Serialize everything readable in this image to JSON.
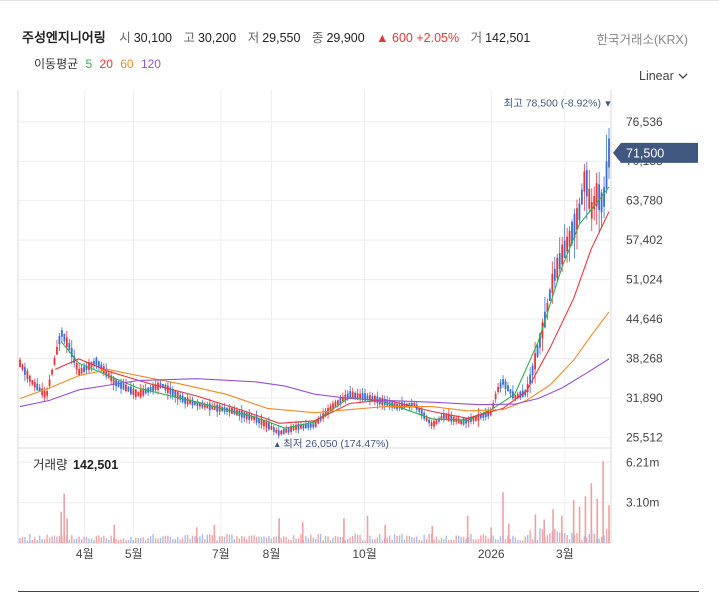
{
  "header": {
    "name": "주성엔지니어링",
    "open_label": "시",
    "open": "30,100",
    "high_label": "고",
    "high": "30,200",
    "low_label": "저",
    "low": "29,550",
    "close_label": "종",
    "close": "29,900",
    "change_arrow": "▲",
    "change": "600",
    "change_pct": "+2.05%",
    "volume_label": "거",
    "volume": "142,501",
    "exchange": "한국거래소(KRX)"
  },
  "ma_legend": {
    "label": "이동평균",
    "periods": [
      {
        "label": "5",
        "color": "#2db04b"
      },
      {
        "label": "20",
        "color": "#e8353a"
      },
      {
        "label": "60",
        "color": "#f08a24"
      },
      {
        "label": "120",
        "color": "#9b4fd6"
      }
    ]
  },
  "scale_select": {
    "value": "Linear",
    "icon": "chevron-down-icon"
  },
  "colors": {
    "up": "#e8353a",
    "down": "#3b6fd4",
    "price_tag": "#40587f",
    "grid": "#eeeeee"
  },
  "chart_data": {
    "type": "candlestick",
    "price_axis": {
      "ticks": [
        25512,
        31890,
        38268,
        44646,
        51024,
        57402,
        63780,
        70158,
        76536
      ],
      "tick_labels": [
        "25,512",
        "31,890",
        "38,268",
        "44,646",
        "51,024",
        "57,402",
        "63,780",
        "70,158",
        "76,536"
      ],
      "range": [
        23800,
        80700
      ]
    },
    "current_price": {
      "value": 71500,
      "label": "71,500"
    },
    "high_annotation": {
      "value": 78500,
      "text": "최고 78,500 (-8.92%)",
      "marker": "▼"
    },
    "low_annotation": {
      "value": 26050,
      "text": "최저 26,050 (174.47%)",
      "marker": "▲"
    },
    "x_labels": [
      "4월",
      "5월",
      "7월",
      "8월",
      "10월",
      "2026",
      "3월"
    ],
    "x_label_positions": [
      0.11,
      0.193,
      0.341,
      0.427,
      0.585,
      0.8,
      0.925
    ],
    "price_path": [
      [
        0,
        37500
      ],
      [
        0.02,
        34500
      ],
      [
        0.045,
        32200
      ],
      [
        0.07,
        42500
      ],
      [
        0.085,
        40000
      ],
      [
        0.1,
        36000
      ],
      [
        0.13,
        37800
      ],
      [
        0.16,
        34500
      ],
      [
        0.2,
        32500
      ],
      [
        0.24,
        34000
      ],
      [
        0.28,
        31500
      ],
      [
        0.32,
        30500
      ],
      [
        0.36,
        29800
      ],
      [
        0.4,
        28500
      ],
      [
        0.42,
        27500
      ],
      [
        0.44,
        26200
      ],
      [
        0.47,
        27200
      ],
      [
        0.5,
        27500
      ],
      [
        0.53,
        30500
      ],
      [
        0.56,
        32500
      ],
      [
        0.6,
        31800
      ],
      [
        0.64,
        30500
      ],
      [
        0.67,
        30800
      ],
      [
        0.7,
        27500
      ],
      [
        0.72,
        29000
      ],
      [
        0.75,
        28000
      ],
      [
        0.78,
        28800
      ],
      [
        0.8,
        29500
      ],
      [
        0.81,
        33000
      ],
      [
        0.82,
        34500
      ],
      [
        0.84,
        32000
      ],
      [
        0.86,
        32800
      ],
      [
        0.875,
        38000
      ],
      [
        0.89,
        44000
      ],
      [
        0.905,
        51000
      ],
      [
        0.92,
        55000
      ],
      [
        0.935,
        58000
      ],
      [
        0.95,
        62000
      ],
      [
        0.96,
        68000
      ],
      [
        0.97,
        62000
      ],
      [
        0.98,
        65000
      ],
      [
        0.99,
        63000
      ],
      [
        1.0,
        71500
      ]
    ],
    "moving_averages": [
      {
        "period": 5,
        "color": "#2db04b",
        "path": [
          [
            0.07,
            41000
          ],
          [
            0.1,
            37500
          ],
          [
            0.2,
            33500
          ],
          [
            0.3,
            31200
          ],
          [
            0.4,
            28800
          ],
          [
            0.45,
            27000
          ],
          [
            0.5,
            28000
          ],
          [
            0.56,
            32000
          ],
          [
            0.62,
            31200
          ],
          [
            0.7,
            28500
          ],
          [
            0.76,
            28300
          ],
          [
            0.8,
            30000
          ],
          [
            0.84,
            32500
          ],
          [
            0.88,
            41000
          ],
          [
            0.92,
            53000
          ],
          [
            0.95,
            60000
          ],
          [
            0.98,
            63500
          ],
          [
            1.0,
            66000
          ]
        ]
      },
      {
        "period": 20,
        "color": "#e8353a",
        "path": [
          [
            0.06,
            36500
          ],
          [
            0.1,
            38200
          ],
          [
            0.15,
            36200
          ],
          [
            0.22,
            34200
          ],
          [
            0.3,
            32200
          ],
          [
            0.38,
            29800
          ],
          [
            0.44,
            27800
          ],
          [
            0.5,
            28200
          ],
          [
            0.56,
            31000
          ],
          [
            0.62,
            31600
          ],
          [
            0.7,
            29700
          ],
          [
            0.76,
            28600
          ],
          [
            0.82,
            30200
          ],
          [
            0.86,
            33000
          ],
          [
            0.9,
            40000
          ],
          [
            0.94,
            48000
          ],
          [
            0.97,
            56000
          ],
          [
            1.0,
            62000
          ]
        ]
      },
      {
        "period": 60,
        "color": "#f08a24",
        "path": [
          [
            0.0,
            31800
          ],
          [
            0.05,
            33500
          ],
          [
            0.1,
            35500
          ],
          [
            0.15,
            36500
          ],
          [
            0.2,
            35500
          ],
          [
            0.27,
            34200
          ],
          [
            0.35,
            32500
          ],
          [
            0.42,
            30200
          ],
          [
            0.5,
            29500
          ],
          [
            0.56,
            30000
          ],
          [
            0.62,
            30500
          ],
          [
            0.7,
            30500
          ],
          [
            0.76,
            29800
          ],
          [
            0.82,
            30000
          ],
          [
            0.86,
            31500
          ],
          [
            0.9,
            34000
          ],
          [
            0.94,
            38000
          ],
          [
            0.97,
            42000
          ],
          [
            1.0,
            45800
          ]
        ]
      },
      {
        "period": 120,
        "color": "#9b4fd6",
        "path": [
          [
            0.0,
            30500
          ],
          [
            0.05,
            31500
          ],
          [
            0.1,
            33200
          ],
          [
            0.2,
            34700
          ],
          [
            0.3,
            35000
          ],
          [
            0.4,
            34500
          ],
          [
            0.45,
            33800
          ],
          [
            0.5,
            32500
          ],
          [
            0.56,
            31800
          ],
          [
            0.62,
            31500
          ],
          [
            0.7,
            31200
          ],
          [
            0.78,
            30800
          ],
          [
            0.84,
            30900
          ],
          [
            0.88,
            31800
          ],
          [
            0.92,
            33500
          ],
          [
            0.96,
            35800
          ],
          [
            1.0,
            38200
          ]
        ]
      }
    ],
    "volume": {
      "label": "거래량",
      "value": "142,501",
      "tick_labels": [
        "6.21m",
        "3.10m"
      ],
      "ticks": [
        6210000,
        3100000
      ],
      "max": 7000000,
      "spikes": [
        [
          0.07,
          2400000
        ],
        [
          0.075,
          3800000
        ],
        [
          0.08,
          1900000
        ],
        [
          0.16,
          1400000
        ],
        [
          0.3,
          1200000
        ],
        [
          0.33,
          1400000
        ],
        [
          0.44,
          1900000
        ],
        [
          0.48,
          1600000
        ],
        [
          0.55,
          1900000
        ],
        [
          0.59,
          2100000
        ],
        [
          0.62,
          1400000
        ],
        [
          0.7,
          1300000
        ],
        [
          0.76,
          2100000
        ],
        [
          0.8,
          1200000
        ],
        [
          0.82,
          3900000
        ],
        [
          0.83,
          1500000
        ],
        [
          0.875,
          2200000
        ],
        [
          0.89,
          1800000
        ],
        [
          0.905,
          2600000
        ],
        [
          0.92,
          2100000
        ],
        [
          0.94,
          3300000
        ],
        [
          0.95,
          2800000
        ],
        [
          0.96,
          3600000
        ],
        [
          0.97,
          4600000
        ],
        [
          0.98,
          3400000
        ],
        [
          0.99,
          6300000
        ],
        [
          1.0,
          2900000
        ]
      ]
    }
  }
}
